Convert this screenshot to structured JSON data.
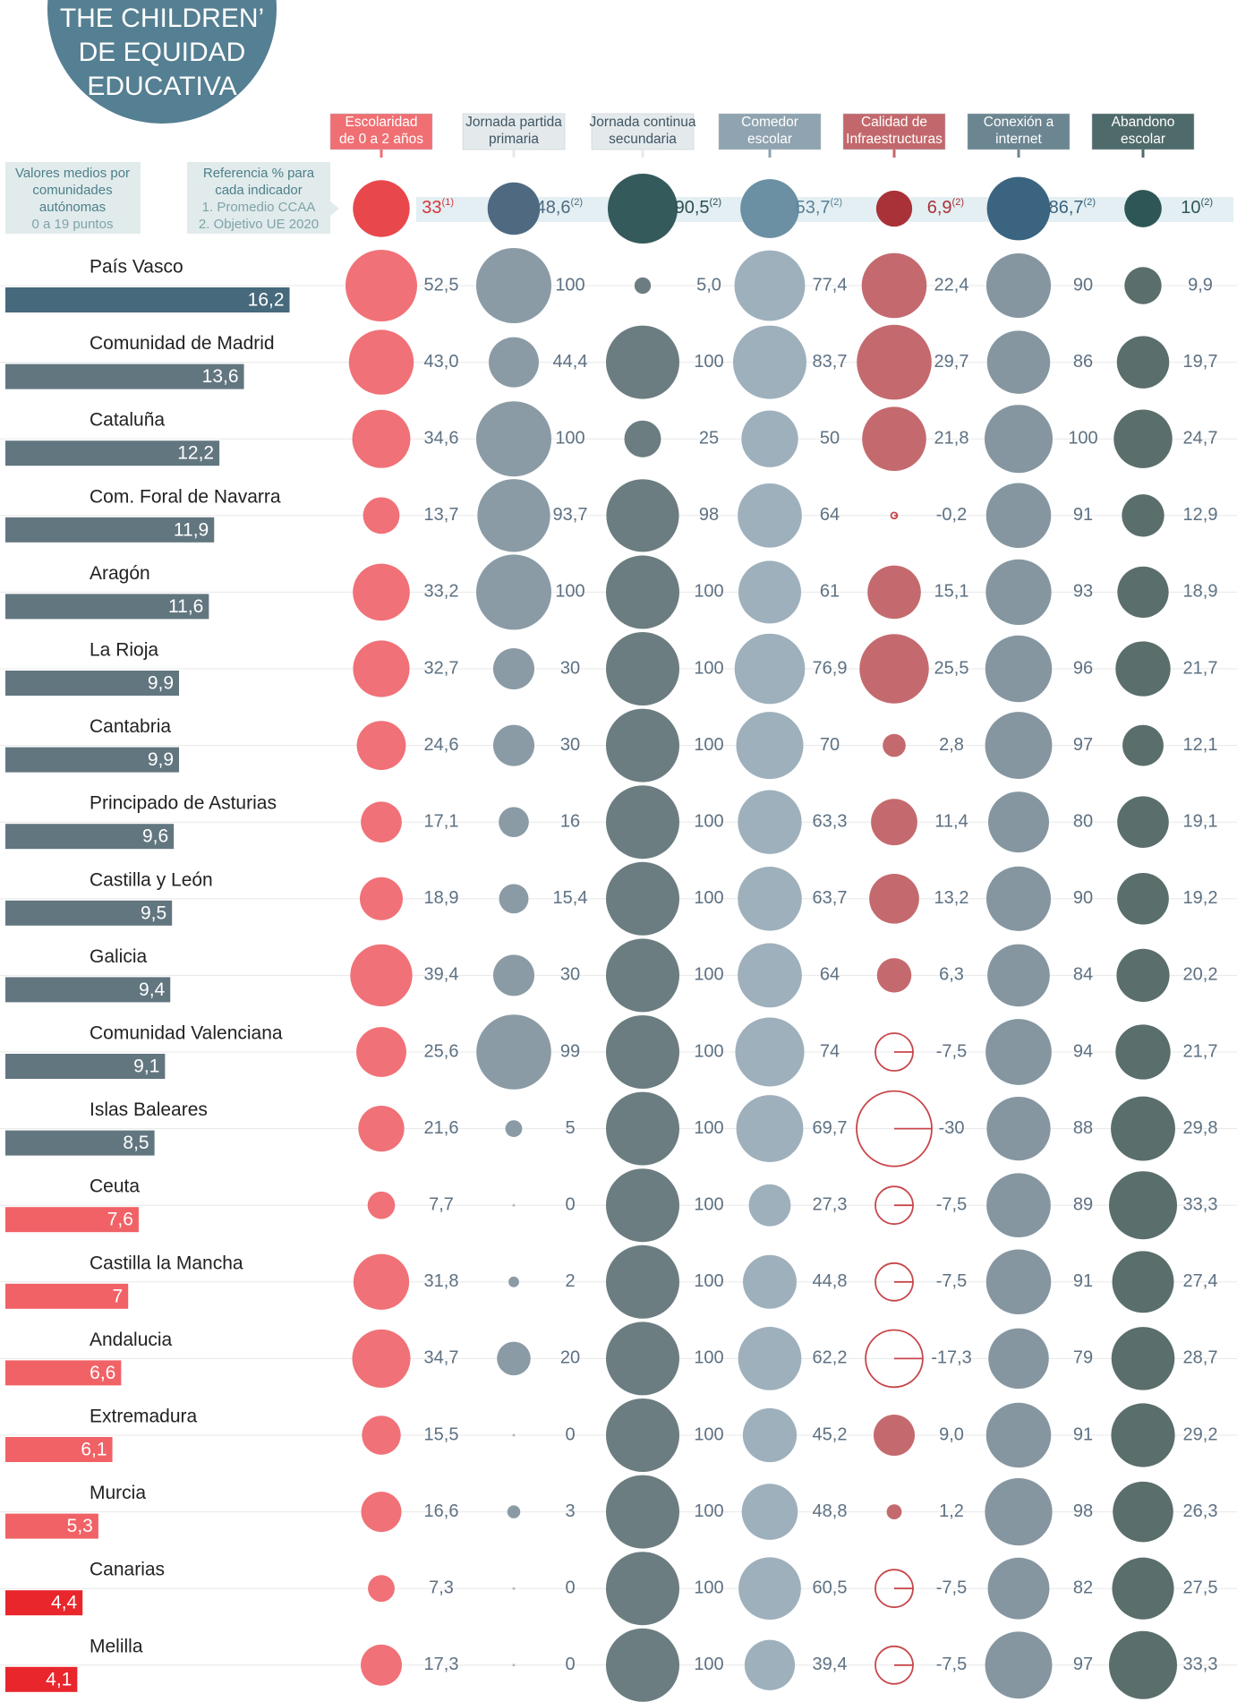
{
  "chart_data": {
    "type": "bubble",
    "title": [
      "THE CHILDREN’",
      "DE EQUIDAD",
      "EDUCATIVA"
    ],
    "title_color": "#557f92",
    "legend_left": [
      "Valores medios por",
      "comunidades",
      "autónomas",
      "0 a 19 puntos"
    ],
    "legend_right": [
      "Referencia % para",
      "cada indicador",
      "1. Promedio CCAA",
      "2. Objetivo UE 2020"
    ],
    "categories": [
      "País Vasco",
      "Comunidad de Madrid",
      "Cataluña",
      "Com. Foral de Navarra",
      "Aragón",
      "La Rioja",
      "Cantabria",
      "Principado de Asturias",
      "Castilla y León",
      "Galicia",
      "Comunidad Valenciana",
      "Islas Baleares",
      "Ceuta",
      "Castilla la Mancha",
      "Andalucia",
      "Extremadura",
      "Murcia",
      "Canarias",
      "Melilla"
    ],
    "scores": [
      16.2,
      13.6,
      12.2,
      11.9,
      11.6,
      9.9,
      9.9,
      9.6,
      9.5,
      9.4,
      9.1,
      8.5,
      7.6,
      7,
      6.6,
      6.1,
      5.3,
      4.4,
      4.1
    ],
    "score_labels": [
      "16,2",
      "13,6",
      "12,2",
      "11,9",
      "11,6",
      "9,9",
      "9,9",
      "9,6",
      "9,5",
      "9,4",
      "9,1",
      "8,5",
      "7,6",
      "7",
      "6,6",
      "6,1",
      "5,3",
      "4,4",
      "4,1"
    ],
    "score_colors": [
      "#47697c",
      "#627680",
      "#627680",
      "#627680",
      "#627680",
      "#627680",
      "#627680",
      "#627680",
      "#627680",
      "#627680",
      "#627680",
      "#627680",
      "#f06266",
      "#f06266",
      "#f06266",
      "#f06266",
      "#f06266",
      "#e8262c",
      "#e8262c"
    ],
    "indicators": [
      {
        "header": [
          "Escolaridad",
          "de 0 a 2 años"
        ],
        "header_color": "#ef6f73",
        "header_text_color": "#ffffff",
        "color": "#f07177",
        "ref_color": "#e8474c",
        "reference_text_color": "#d9343a",
        "negative_color": "#c8464b",
        "values": [
          52.5,
          43.0,
          34.6,
          13.7,
          33.2,
          32.7,
          24.6,
          17.1,
          18.9,
          39.4,
          25.6,
          21.6,
          7.7,
          31.8,
          34.7,
          15.5,
          16.6,
          7.3,
          17.3
        ],
        "value_labels": [
          "52,5",
          "43,0",
          "34,6",
          "13,7",
          "33,2",
          "32,7",
          "24,6",
          "17,1",
          "18,9",
          "39,4",
          "25,6",
          "21,6",
          "7,7",
          "31,8",
          "34,7",
          "15,5",
          "16,6",
          "7,3",
          "17,3"
        ],
        "reference": 33,
        "reference_label": "33",
        "reference_note": "(1)"
      },
      {
        "header": [
          "Jornada partida",
          "primaria"
        ],
        "header_color": "#e4eaec",
        "header_text_color": "#3f5563",
        "color": "#8a9ba5",
        "ref_color": "#4f6a80",
        "reference_text_color": "#4f6a80",
        "negative_color": "#c8464b",
        "values": [
          100,
          44.4,
          100,
          93.7,
          100,
          30,
          30,
          16,
          15.4,
          30,
          99,
          5,
          0,
          2,
          20,
          0,
          3,
          0,
          0
        ],
        "value_labels": [
          "100",
          "44,4",
          "100",
          "93,7",
          "100",
          "30",
          "30",
          "16",
          "15,4",
          "30",
          "99",
          "5",
          "0",
          "2",
          "20",
          "0",
          "3",
          "0",
          "0"
        ],
        "reference": 48.6,
        "reference_label": "48,6",
        "reference_note": "(2)"
      },
      {
        "header": [
          "Jornada continua",
          "secundaria"
        ],
        "header_color": "#e4eaec",
        "header_text_color": "#3f5563",
        "color": "#6b7d80",
        "ref_color": "#355a5c",
        "reference_text_color": "#2f4f50",
        "negative_color": "#c8464b",
        "values": [
          5.0,
          100,
          25,
          98,
          100,
          100,
          100,
          100,
          100,
          100,
          100,
          100,
          100,
          100,
          100,
          100,
          100,
          100,
          100
        ],
        "value_labels": [
          "5,0",
          "100",
          "25",
          "98",
          "100",
          "100",
          "100",
          "100",
          "100",
          "100",
          "100",
          "100",
          "100",
          "100",
          "100",
          "100",
          "100",
          "100",
          "100"
        ],
        "reference": 90.5,
        "reference_label": "90,5",
        "reference_note": "(2)"
      },
      {
        "header": [
          "Comedor",
          "escolar"
        ],
        "header_color": "#8fa3b0",
        "header_text_color": "#ffffff",
        "color": "#9eb0bc",
        "ref_color": "#6b8fa3",
        "reference_text_color": "#5b8198",
        "negative_color": "#c8464b",
        "values": [
          77.4,
          83.7,
          50,
          64,
          61,
          76.9,
          70,
          63.3,
          63.7,
          64,
          74,
          69.7,
          27.3,
          44.8,
          62.2,
          45.2,
          48.8,
          60.5,
          39.4
        ],
        "value_labels": [
          "77,4",
          "83,7",
          "50",
          "64",
          "61",
          "76,9",
          "70",
          "63,3",
          "63,7",
          "64",
          "74",
          "69,7",
          "27,3",
          "44,8",
          "62,2",
          "45,2",
          "48,8",
          "60,5",
          "39,4"
        ],
        "reference": 53.7,
        "reference_label": "53,7",
        "reference_note": "(2)"
      },
      {
        "header": [
          "Calidad de",
          "Infraestructuras"
        ],
        "header_color": "#c2686c",
        "header_text_color": "#ffffff",
        "color": "#c46a6e",
        "ref_color": "#a83238",
        "reference_text_color": "#a83238",
        "negative_color": "#c8464b",
        "values": [
          22.4,
          29.7,
          21.8,
          -0.2,
          15.1,
          25.5,
          2.8,
          11.4,
          13.2,
          6.3,
          -7.5,
          -30,
          -7.5,
          -7.5,
          -17.3,
          9.0,
          1.2,
          -7.5,
          -7.5
        ],
        "value_labels": [
          "22,4",
          "29,7",
          "21,8",
          "-0,2",
          "15,1",
          "25,5",
          "2,8",
          "11,4",
          "13,2",
          "6,3",
          "-7,5",
          "-30",
          "-7,5",
          "-7,5",
          "-17,3",
          "9,0",
          "1,2",
          "-7,5",
          "-7,5"
        ],
        "reference": 6.9,
        "reference_label": "6,9",
        "reference_note": "(2)"
      },
      {
        "header": [
          "Conexión a",
          "internet"
        ],
        "header_color": "#6b8591",
        "header_text_color": "#ffffff",
        "color": "#8596a0",
        "ref_color": "#3b6480",
        "reference_text_color": "#3b6480",
        "negative_color": "#c8464b",
        "values": [
          90,
          86,
          100,
          91,
          93,
          96,
          97,
          80,
          90,
          84,
          94,
          88,
          89,
          91,
          79,
          91,
          98,
          82,
          97
        ],
        "value_labels": [
          "90",
          "86",
          "100",
          "91",
          "93",
          "96",
          "97",
          "80",
          "90",
          "84",
          "94",
          "88",
          "89",
          "91",
          "79",
          "91",
          "98",
          "82",
          "97"
        ],
        "reference": 86.7,
        "reference_label": "86,7",
        "reference_note": "(2)"
      },
      {
        "header": [
          "Abandono",
          "escolar"
        ],
        "header_color": "#4f6a6b",
        "header_text_color": "#ffffff",
        "color": "#5a6e6c",
        "ref_color": "#2f5656",
        "reference_text_color": "#2f5656",
        "negative_color": "#c8464b",
        "values": [
          9.9,
          19.7,
          24.7,
          12.9,
          18.9,
          21.7,
          12.1,
          19.1,
          19.2,
          20.2,
          21.7,
          29.8,
          33.3,
          27.4,
          28.7,
          29.2,
          26.3,
          27.5,
          33.3
        ],
        "value_labels": [
          "9,9",
          "19,7",
          "24,7",
          "12,9",
          "18,9",
          "21,7",
          "12,1",
          "19,1",
          "19,2",
          "20,2",
          "21,7",
          "29,8",
          "33,3",
          "27,4",
          "28,7",
          "29,2",
          "26,3",
          "27,5",
          "33,3"
        ],
        "reference": 10,
        "reference_label": "10",
        "reference_note": "(2)"
      }
    ]
  }
}
